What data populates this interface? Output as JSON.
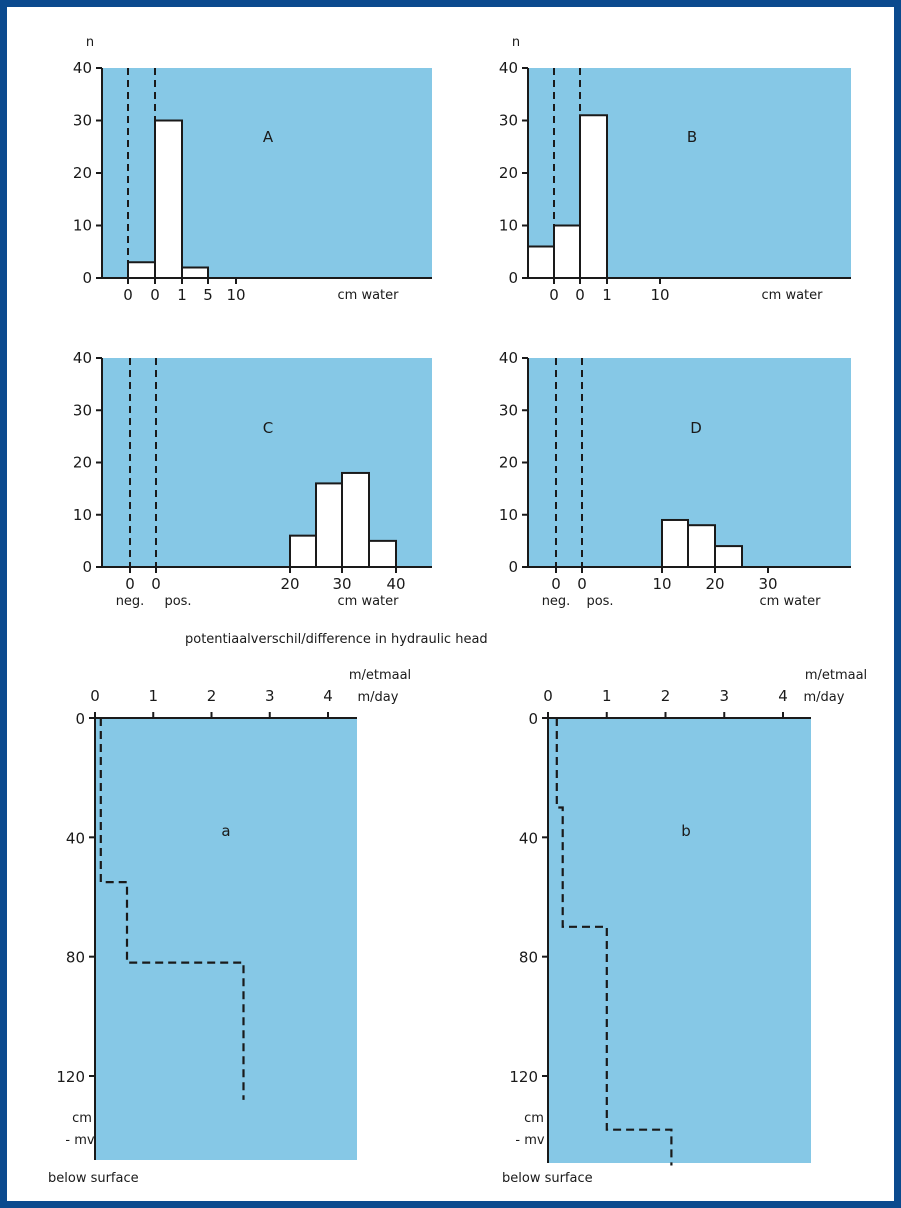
{
  "colors": {
    "frame": "#0b4a8e",
    "panel": "#86c8e6",
    "bar": "#ffffff",
    "ink": "#1a1a1a"
  },
  "caption": "potentiaalverschil/difference in hydraulic head",
  "chart_data": [
    {
      "id": "A",
      "type": "bar",
      "panel_label": "A",
      "ylabel": "n",
      "xlabel": "cm water",
      "ylim": [
        0,
        40
      ],
      "y_ticks": [
        "0",
        "10",
        "20",
        "30",
        "40"
      ],
      "x_tick_labels": [
        "0",
        "0",
        "1",
        "5",
        "10"
      ],
      "dashed_lines_at": [
        "0",
        "0"
      ],
      "bins": [
        {
          "range": "0–0 (neg.)",
          "value": 3
        },
        {
          "range": "0–1",
          "value": 30
        },
        {
          "range": "1–5",
          "value": 2
        }
      ]
    },
    {
      "id": "B",
      "type": "bar",
      "panel_label": "B",
      "ylabel": "n",
      "xlabel": "cm water",
      "ylim": [
        0,
        40
      ],
      "y_ticks": [
        "0",
        "10",
        "20",
        "30",
        "40"
      ],
      "x_tick_labels": [
        "0",
        "0",
        "1",
        "10"
      ],
      "dashed_lines_at": [
        "0",
        "0"
      ],
      "bins": [
        {
          "range": "< 0",
          "value": 6
        },
        {
          "range": "0–0",
          "value": 10
        },
        {
          "range": "0–1",
          "value": 31
        }
      ]
    },
    {
      "id": "C",
      "type": "bar",
      "panel_label": "C",
      "xlabel": "cm water",
      "neg_label": "neg.",
      "pos_label": "pos.",
      "ylim": [
        0,
        40
      ],
      "y_ticks": [
        "0",
        "10",
        "20",
        "30",
        "40"
      ],
      "x_tick_labels": [
        "0",
        "0",
        "20",
        "30",
        "40"
      ],
      "dashed_lines_at": [
        "0",
        "0"
      ],
      "bins": [
        {
          "range": "20–25",
          "value": 6
        },
        {
          "range": "25–30",
          "value": 16
        },
        {
          "range": "30–35",
          "value": 18
        },
        {
          "range": "35–40",
          "value": 5
        }
      ]
    },
    {
      "id": "D",
      "type": "bar",
      "panel_label": "D",
      "xlabel": "cm water",
      "neg_label": "neg.",
      "pos_label": "pos.",
      "ylim": [
        0,
        40
      ],
      "y_ticks": [
        "0",
        "10",
        "20",
        "30",
        "40"
      ],
      "x_tick_labels": [
        "0",
        "0",
        "10",
        "20",
        "30"
      ],
      "dashed_lines_at": [
        "0",
        "0"
      ],
      "bins": [
        {
          "range": "10–15",
          "value": 9
        },
        {
          "range": "15–20",
          "value": 8
        },
        {
          "range": "20–25",
          "value": 4
        }
      ]
    },
    {
      "id": "a",
      "type": "line",
      "panel_label": "a",
      "x_unit_top": "m/etmaal",
      "x_unit_bottom": "m/day",
      "x_ticks": [
        "0",
        "1",
        "2",
        "3",
        "4"
      ],
      "y_ticks": [
        "0",
        "40",
        "80",
        "120"
      ],
      "y_unit": "cm",
      "y_unit2": "- mv",
      "y_note": "below surface",
      "xlim": [
        0,
        4.5
      ],
      "ylim": [
        0,
        150
      ],
      "step_profile": [
        {
          "depth": 0,
          "k": 0.1
        },
        {
          "depth": 55,
          "k": 0.1
        },
        {
          "depth": 55,
          "k": 0.55
        },
        {
          "depth": 82,
          "k": 0.55
        },
        {
          "depth": 82,
          "k": 2.55
        },
        {
          "depth": 128,
          "k": 2.55
        }
      ]
    },
    {
      "id": "b",
      "type": "line",
      "panel_label": "b",
      "x_unit_top": "m/etmaal",
      "x_unit_bottom": "m/day",
      "x_ticks": [
        "0",
        "1",
        "2",
        "3",
        "4"
      ],
      "y_ticks": [
        "0",
        "40",
        "80",
        "120"
      ],
      "y_unit": "cm",
      "y_unit2": "- mv",
      "y_note": "below surface",
      "xlim": [
        0,
        4.5
      ],
      "ylim": [
        0,
        150
      ],
      "step_profile": [
        {
          "depth": 0,
          "k": 0.15
        },
        {
          "depth": 30,
          "k": 0.15
        },
        {
          "depth": 30,
          "k": 0.25
        },
        {
          "depth": 70,
          "k": 0.25
        },
        {
          "depth": 70,
          "k": 1.0
        },
        {
          "depth": 138,
          "k": 1.0
        },
        {
          "depth": 138,
          "k": 2.1
        },
        {
          "depth": 150,
          "k": 2.1
        }
      ]
    }
  ]
}
